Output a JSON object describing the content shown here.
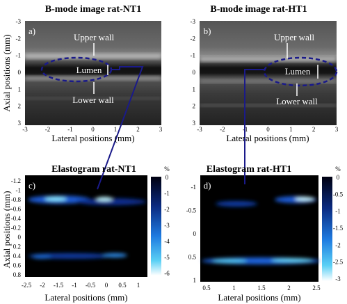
{
  "panels": [
    {
      "title": "B-mode image rat-NT1",
      "label": "a)",
      "x_label": "Lateral positions (mm)",
      "y_label": "Axial positions (mm)",
      "xticks": [
        -3,
        -2,
        -1,
        0,
        1,
        2,
        3
      ],
      "yticks": [
        -3,
        -2,
        -1,
        0,
        1,
        2,
        3
      ],
      "annotations": [
        "Upper wall",
        "Lumen",
        "Lower wall"
      ]
    },
    {
      "title": "B-mode image rat-HT1",
      "label": "b)",
      "x_label": "Lateral positions (mm)",
      "xticks": [
        -3,
        -2,
        -1,
        0,
        1,
        2,
        3
      ],
      "yticks": [
        -3,
        -2,
        -1,
        0,
        1,
        2,
        3
      ],
      "annotations": [
        "Upper wall",
        "Lumen",
        "Lower wall"
      ]
    },
    {
      "title": "Elastogram rat-NT1",
      "label": "c)",
      "x_label": "Lateral positions (mm)",
      "y_label": "Axial positions (mm)",
      "xticks": [
        -2.5,
        -2,
        -1.5,
        -1,
        -0.5,
        0,
        0.5,
        1
      ],
      "yticks": [
        -1.2,
        -1,
        -0.8,
        -0.6,
        -0.4,
        -0.2,
        0,
        0.2,
        0.4,
        0.6,
        0.8
      ],
      "colorbar_unit": "%",
      "colorbar_ticks": [
        0,
        -1,
        -2,
        -3,
        -4,
        -5,
        -6
      ]
    },
    {
      "title": "Elastogram rat-HT1",
      "label": "d)",
      "x_label": "Lateral positions (mm)",
      "xticks": [
        0.5,
        1,
        1.5,
        2,
        2.5
      ],
      "yticks": [
        -1,
        -0.5,
        0,
        0.5,
        1
      ],
      "colorbar_unit": "%",
      "colorbar_ticks": [
        0,
        -0.5,
        -1,
        -1.5,
        -2,
        -2.5,
        -3
      ]
    }
  ]
}
